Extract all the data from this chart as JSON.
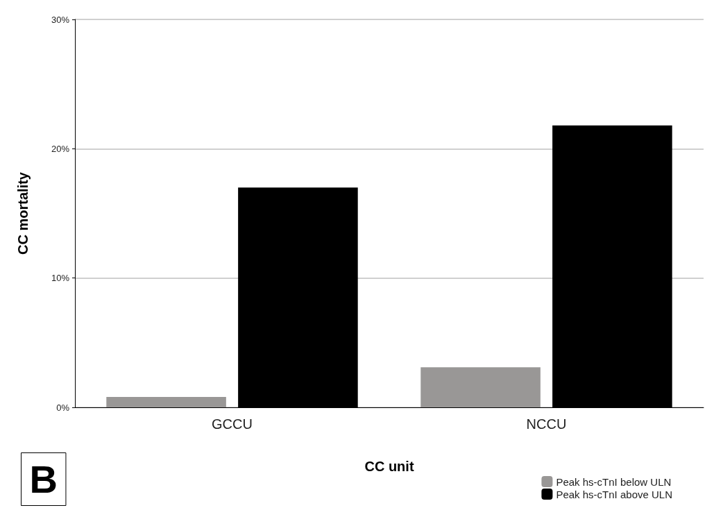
{
  "chart_data": {
    "type": "bar",
    "xlabel": "CC unit",
    "ylabel": "CC mortality",
    "categories": [
      "GCCU",
      "NCCU"
    ],
    "series": [
      {
        "name": "Peak hs-cTnI below ULN",
        "color": "#999796",
        "values": [
          0.8,
          3.1
        ]
      },
      {
        "name": "Peak hs-cTnI above ULN",
        "color": "#000000",
        "values": [
          17.0,
          21.8
        ]
      }
    ],
    "ylim": [
      0,
      30
    ],
    "yticks": [
      {
        "value": 0,
        "label": "0%"
      },
      {
        "value": 10,
        "label": "10%"
      },
      {
        "value": 20,
        "label": "20%"
      },
      {
        "value": 30,
        "label": "30%"
      }
    ],
    "grid": "y",
    "legend": "bottom right",
    "annotations": [
      "B"
    ]
  }
}
